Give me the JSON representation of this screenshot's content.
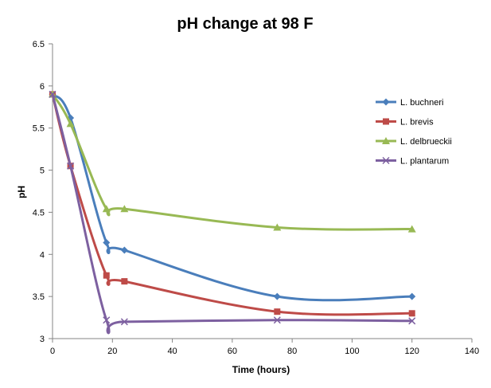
{
  "chart_data": {
    "type": "line",
    "title": "pH change at 98 F",
    "xlabel": "Time (hours)",
    "ylabel": "pH",
    "xlim": [
      0,
      140
    ],
    "ylim": [
      3,
      6.5
    ],
    "xticks": [
      0,
      20,
      40,
      60,
      80,
      100,
      120,
      140
    ],
    "yticks": [
      3,
      3.5,
      4,
      4.5,
      5,
      5.5,
      6,
      6.5
    ],
    "xtick_labels": [
      "0",
      "20",
      "40",
      "60",
      "80",
      "100",
      "120",
      "140"
    ],
    "ytick_labels": [
      "3",
      "3.5",
      "4",
      "4.5",
      "5",
      "5.5",
      "6",
      "6.5"
    ],
    "grid": false,
    "legend_position": "right",
    "series": [
      {
        "name": "L. buchneri",
        "color": "#4a7ebb",
        "marker": "diamond",
        "x": [
          0,
          6,
          18,
          24,
          75,
          120
        ],
        "y": [
          5.9,
          5.62,
          4.14,
          4.05,
          3.5,
          3.5
        ]
      },
      {
        "name": "L. brevis",
        "color": "#be4b48",
        "marker": "square",
        "x": [
          0,
          6,
          18,
          24,
          75,
          120
        ],
        "y": [
          5.9,
          5.05,
          3.75,
          3.68,
          3.32,
          3.3
        ]
      },
      {
        "name": "L. delbrueckii",
        "color": "#98b954",
        "marker": "triangle",
        "x": [
          0,
          6,
          18,
          24,
          75,
          120
        ],
        "y": [
          5.9,
          5.55,
          4.54,
          4.54,
          4.32,
          4.3
        ]
      },
      {
        "name": "L. plantarum",
        "color": "#7d60a0",
        "marker": "x",
        "x": [
          0,
          6,
          18,
          24,
          75,
          120
        ],
        "y": [
          5.9,
          5.05,
          3.22,
          3.2,
          3.22,
          3.21
        ]
      }
    ]
  }
}
